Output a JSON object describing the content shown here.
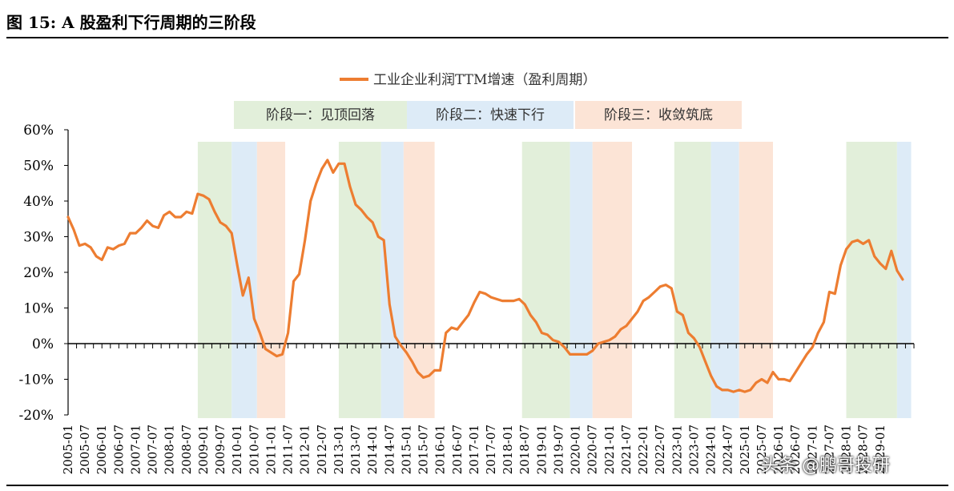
{
  "figure_title": "图 15: A 股盈利下行周期的三阶段",
  "watermark": "头条 @鹏哥投研",
  "colors": {
    "line": "#ED7D31",
    "phase1": "#E2EFDA",
    "phase2": "#DDEBF7",
    "phase3": "#FCE4D6",
    "axis": "#000000"
  },
  "chart_data": {
    "type": "line",
    "legend_position": "top-center",
    "series": [
      {
        "name": "工业企业利润TTM增速（盈利周期）",
        "points": [
          [
            "2005-01",
            35.5
          ],
          [
            "2005-03",
            32
          ],
          [
            "2005-05",
            27.5
          ],
          [
            "2005-07",
            28
          ],
          [
            "2005-09",
            27
          ],
          [
            "2005-11",
            24.5
          ],
          [
            "2006-01",
            23.5
          ],
          [
            "2006-03",
            27
          ],
          [
            "2006-05",
            26.5
          ],
          [
            "2006-07",
            27.5
          ],
          [
            "2006-09",
            28
          ],
          [
            "2006-11",
            31
          ],
          [
            "2007-01",
            31
          ],
          [
            "2007-03",
            32.5
          ],
          [
            "2007-05",
            34.5
          ],
          [
            "2007-07",
            33
          ],
          [
            "2007-09",
            32.5
          ],
          [
            "2007-11",
            36
          ],
          [
            "2008-01",
            37
          ],
          [
            "2008-03",
            35.5
          ],
          [
            "2008-05",
            35.5
          ],
          [
            "2008-07",
            37
          ],
          [
            "2008-09",
            36.5
          ],
          [
            "2008-11",
            42
          ],
          [
            "2009-01",
            41.5
          ],
          [
            "2009-03",
            40.5
          ],
          [
            "2009-05",
            37
          ],
          [
            "2009-07",
            34
          ],
          [
            "2009-09",
            33
          ],
          [
            "2009-11",
            31
          ],
          [
            "2010-01",
            22
          ],
          [
            "2010-03",
            13.5
          ],
          [
            "2010-05",
            18.5
          ],
          [
            "2010-07",
            7
          ],
          [
            "2010-09",
            3
          ],
          [
            "2010-11",
            -1.5
          ],
          [
            "2011-01",
            -2.5
          ],
          [
            "2011-03",
            -3.5
          ],
          [
            "2011-05",
            -3
          ],
          [
            "2011-07",
            3
          ],
          [
            "2011-09",
            17.5
          ],
          [
            "2011-11",
            19.5
          ],
          [
            "2012-01",
            29
          ],
          [
            "2012-03",
            40
          ],
          [
            "2012-05",
            45
          ],
          [
            "2012-07",
            49
          ],
          [
            "2012-09",
            51.5
          ],
          [
            "2012-11",
            48
          ],
          [
            "2013-01",
            50.5
          ],
          [
            "2013-03",
            50.5
          ],
          [
            "2013-05",
            44
          ],
          [
            "2013-07",
            39
          ],
          [
            "2013-09",
            37.5
          ],
          [
            "2013-11",
            35.5
          ],
          [
            "2014-01",
            34
          ],
          [
            "2014-03",
            30
          ],
          [
            "2014-05",
            29
          ],
          [
            "2014-07",
            11
          ],
          [
            "2014-09",
            2
          ],
          [
            "2014-11",
            -0.5
          ],
          [
            "2015-01",
            -2.5
          ],
          [
            "2015-03",
            -5
          ],
          [
            "2015-05",
            -8
          ],
          [
            "2015-07",
            -9.5
          ],
          [
            "2015-09",
            -9
          ],
          [
            "2015-11",
            -7.5
          ],
          [
            "2016-01",
            -7.5
          ],
          [
            "2016-03",
            3
          ],
          [
            "2016-05",
            4.5
          ],
          [
            "2016-07",
            4
          ],
          [
            "2016-09",
            6
          ],
          [
            "2016-11",
            8
          ],
          [
            "2017-01",
            11.5
          ],
          [
            "2017-03",
            14.5
          ],
          [
            "2017-05",
            14
          ],
          [
            "2017-07",
            13
          ],
          [
            "2017-09",
            12.5
          ],
          [
            "2017-11",
            12
          ],
          [
            "2018-01",
            12
          ],
          [
            "2018-03",
            12
          ],
          [
            "2018-05",
            12.5
          ],
          [
            "2018-07",
            11
          ],
          [
            "2018-09",
            8
          ],
          [
            "2018-11",
            6
          ],
          [
            "2019-01",
            3
          ],
          [
            "2019-03",
            2.5
          ],
          [
            "2019-05",
            1
          ],
          [
            "2019-07",
            0.5
          ],
          [
            "2019-09",
            -1
          ],
          [
            "2019-11",
            -3
          ],
          [
            "2020-01",
            -3
          ],
          [
            "2020-03",
            -3
          ],
          [
            "2020-05",
            -3
          ],
          [
            "2020-07",
            -2
          ],
          [
            "2020-09",
            0
          ],
          [
            "2020-11",
            0.5
          ],
          [
            "2021-01",
            1
          ],
          [
            "2021-03",
            2
          ],
          [
            "2021-05",
            4
          ],
          [
            "2021-07",
            5
          ],
          [
            "2021-09",
            7
          ],
          [
            "2021-11",
            9
          ],
          [
            "2022-01",
            12
          ],
          [
            "2022-03",
            13
          ],
          [
            "2022-05",
            14.5
          ],
          [
            "2022-07",
            16
          ],
          [
            "2022-09",
            16.5
          ],
          [
            "2022-11",
            15.5
          ],
          [
            "2023-01",
            9
          ],
          [
            "2023-03",
            8
          ],
          [
            "2023-05",
            3
          ],
          [
            "2023-07",
            1.5
          ],
          [
            "2023-09",
            -1
          ],
          [
            "2023-11",
            -5
          ],
          [
            "2024-01",
            -9
          ],
          [
            "2024-03",
            -12
          ],
          [
            "2024-05",
            -13
          ],
          [
            "2024-07",
            -13
          ],
          [
            "2024-09",
            -13.5
          ],
          [
            "2024-11",
            -13
          ],
          [
            "2025-01",
            -13.5
          ],
          [
            "2025-03",
            -13
          ],
          [
            "2025-05",
            -11
          ],
          [
            "2025-07",
            -10
          ],
          [
            "2025-09",
            -11
          ],
          [
            "2025-11",
            -8
          ],
          [
            "2026-01",
            -10
          ],
          [
            "2026-03",
            -10
          ],
          [
            "2026-05",
            -10.5
          ],
          [
            "2026-07",
            -8
          ],
          [
            "2026-09",
            -5.5
          ],
          [
            "2026-11",
            -3
          ],
          [
            "2027-01",
            -1
          ],
          [
            "2027-03",
            3
          ],
          [
            "2027-05",
            6
          ],
          [
            "2027-07",
            14.5
          ],
          [
            "2027-09",
            14
          ],
          [
            "2027-11",
            22
          ],
          [
            "2028-01",
            26.5
          ],
          [
            "2028-03",
            28.5
          ],
          [
            "2028-05",
            29
          ],
          [
            "2028-07",
            28
          ],
          [
            "2028-09",
            29
          ],
          [
            "2028-11",
            24.5
          ],
          [
            "2029-01",
            22.5
          ],
          [
            "2029-03",
            21
          ],
          [
            "2029-05",
            26
          ],
          [
            "2029-07",
            20.5
          ],
          [
            "2029-09",
            18
          ]
        ]
      }
    ],
    "x_tick_labels": [
      "2005-01",
      "2005-07",
      "2006-01",
      "2006-07",
      "2007-01",
      "2007-07",
      "2008-01",
      "2008-07",
      "2009-01",
      "2009-07",
      "2010-01",
      "2010-07",
      "2011-01",
      "2011-07",
      "2012-01",
      "2012-07",
      "2013-01",
      "2013-07",
      "2014-01",
      "2014-07",
      "2015-01",
      "2015-07",
      "2016-01",
      "2016-07",
      "2017-01",
      "2017-07",
      "2018-01",
      "2018-07",
      "2019-01",
      "2019-07",
      "2020-01",
      "2020-07",
      "2021-01",
      "2021-07",
      "2022-01",
      "2022-07",
      "2023-01",
      "2023-07",
      "2024-01",
      "2024-07",
      "2025-01",
      "2025-07",
      "2026-01",
      "2026-07",
      "2027-01",
      "2027-07",
      "2028-01",
      "2028-07",
      "2029-01"
    ],
    "x_tick_display": [
      "2005-01",
      "2005-07",
      "2006-01",
      "2006-07",
      "2007-01",
      "2007-07",
      "2008-01",
      "2008-07",
      "2009-01",
      "2009-07",
      "2010-01",
      "2010-07",
      "2011-01",
      "2011-07",
      "2012-01",
      "2012-07",
      "2013-01",
      "2013-07",
      "2014-01",
      "2014-07",
      "2015-01",
      "2015-07",
      "2016-01",
      "2016-07",
      "2017-01",
      "2017-07",
      "2018-01",
      "2018-07",
      "2019-01",
      "2019-07",
      "2020-01",
      "2020-07",
      "2021-01",
      "2021-07",
      "2022-01",
      "2022-07",
      "2023-01",
      "2023-07",
      "2024-01",
      "2024-07",
      "2025-01",
      "2025-07",
      "2026-01",
      "2026-07",
      "2027-01",
      "2027-07",
      "2028-01",
      "2028-07",
      "2029-01"
    ],
    "x_tick_every_months": 6,
    "y_ticks": [
      "60%",
      "50%",
      "40%",
      "30%",
      "20%",
      "10%",
      "0%",
      "-10%",
      "-20%"
    ],
    "y_tick_values": [
      60,
      50,
      40,
      30,
      20,
      10,
      0,
      -10,
      -20
    ],
    "ylim": [
      -20,
      60
    ],
    "x_range": [
      "2005-01",
      "2029-12"
    ],
    "grid": false,
    "phase_legend": [
      {
        "label": "阶段一：见顶回落",
        "phase": 1
      },
      {
        "label": "阶段二：快速下行",
        "phase": 2
      },
      {
        "label": "阶段三：收敛筑底",
        "phase": 3
      }
    ],
    "phase_bands": [
      {
        "phase": 1,
        "start": "2008-11",
        "end": "2009-11"
      },
      {
        "phase": 2,
        "start": "2009-11",
        "end": "2010-08"
      },
      {
        "phase": 3,
        "start": "2010-08",
        "end": "2011-06"
      },
      {
        "phase": 1,
        "start": "2013-01",
        "end": "2014-04"
      },
      {
        "phase": 2,
        "start": "2014-04",
        "end": "2014-12"
      },
      {
        "phase": 3,
        "start": "2014-12",
        "end": "2015-11"
      },
      {
        "phase": 1,
        "start": "2018-06",
        "end": "2019-11"
      },
      {
        "phase": 2,
        "start": "2019-11",
        "end": "2020-07"
      },
      {
        "phase": 3,
        "start": "2020-07",
        "end": "2021-09"
      },
      {
        "phase": 1,
        "start": "2022-12",
        "end": "2024-01"
      },
      {
        "phase": 2,
        "start": "2024-01",
        "end": "2024-11"
      },
      {
        "phase": 3,
        "start": "2024-11",
        "end": "2025-11"
      },
      {
        "phase": 1,
        "start": "2028-01",
        "end": "2029-07"
      },
      {
        "phase": 2,
        "start": "2029-07",
        "end": "2029-12"
      }
    ]
  }
}
